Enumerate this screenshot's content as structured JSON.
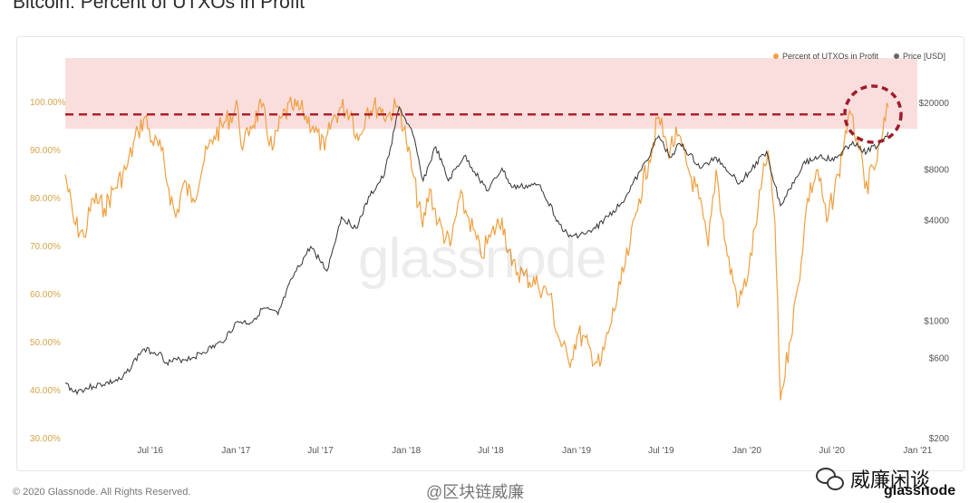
{
  "page": {
    "title": "Bitcoin: Percent of UTXOs in Profit",
    "watermark": "glassnode",
    "footer": "© 2020 Glassnode. All Rights Reserved.",
    "weibo_tag": "@区块链威廉",
    "wechat_name": "威廉闲谈",
    "corner_brand": "glassnode"
  },
  "colors": {
    "utxo": "#f0a040",
    "price": "#333333",
    "band": "#f9d6d6",
    "ref_line": "#b0202a"
  },
  "chart_data": {
    "type": "line",
    "title": "Bitcoin: Percent of UTXOs in Profit",
    "legend_position": "top-right",
    "grid": false,
    "x_ticks": [
      "Jul '16",
      "Jan '17",
      "Jul '17",
      "Jan '18",
      "Jul '18",
      "Jan '19",
      "Jul '19",
      "Jan '20",
      "Jul '20",
      "Jan '21"
    ],
    "x_range": [
      "2016-01-01",
      "2021-01-01"
    ],
    "y_left": {
      "range": [
        30,
        100
      ],
      "ticks": [
        "30.00%",
        "40.00%",
        "50.00%",
        "60.00%",
        "70.00%",
        "80.00%",
        "90.00%",
        "100.00%"
      ]
    },
    "y_right": {
      "scale": "log",
      "range": [
        200,
        20000
      ],
      "ticks": [
        "$200",
        "$600",
        "$1000",
        "$4000",
        "$8000",
        "$20000"
      ]
    },
    "highlight_band": [
      94.5,
      110
    ],
    "reference_line": 97.5,
    "series": [
      {
        "name": "Percent of UTXOs in Profit",
        "axis": "left",
        "points": [
          [
            "2016-01-01",
            85
          ],
          [
            "2016-01-20",
            75
          ],
          [
            "2016-02-10",
            72
          ],
          [
            "2016-03-01",
            80
          ],
          [
            "2016-03-25",
            78
          ],
          [
            "2016-04-15",
            82
          ],
          [
            "2016-05-10",
            86
          ],
          [
            "2016-06-05",
            94
          ],
          [
            "2016-06-20",
            97
          ],
          [
            "2016-07-05",
            92
          ],
          [
            "2016-07-25",
            90
          ],
          [
            "2016-08-10",
            82
          ],
          [
            "2016-08-25",
            76
          ],
          [
            "2016-09-10",
            83
          ],
          [
            "2016-10-01",
            80
          ],
          [
            "2016-10-25",
            88
          ],
          [
            "2016-11-15",
            93
          ],
          [
            "2016-12-10",
            96
          ],
          [
            "2017-01-05",
            99
          ],
          [
            "2017-01-15",
            90
          ],
          [
            "2017-02-01",
            95
          ],
          [
            "2017-02-25",
            99
          ],
          [
            "2017-03-20",
            90
          ],
          [
            "2017-04-10",
            97
          ],
          [
            "2017-05-01",
            99
          ],
          [
            "2017-05-25",
            98
          ],
          [
            "2017-06-15",
            95
          ],
          [
            "2017-07-10",
            90
          ],
          [
            "2017-07-25",
            96
          ],
          [
            "2017-08-15",
            99
          ],
          [
            "2017-09-05",
            98
          ],
          [
            "2017-09-20",
            92
          ],
          [
            "2017-10-10",
            99
          ],
          [
            "2017-11-05",
            99
          ],
          [
            "2017-11-20",
            97
          ],
          [
            "2017-12-10",
            99
          ],
          [
            "2017-12-20",
            98
          ],
          [
            "2018-01-01",
            92
          ],
          [
            "2018-01-15",
            85
          ],
          [
            "2018-02-05",
            74
          ],
          [
            "2018-02-20",
            82
          ],
          [
            "2018-03-10",
            75
          ],
          [
            "2018-04-05",
            70
          ],
          [
            "2018-04-25",
            80
          ],
          [
            "2018-05-15",
            76
          ],
          [
            "2018-06-10",
            68
          ],
          [
            "2018-06-30",
            72
          ],
          [
            "2018-07-25",
            76
          ],
          [
            "2018-08-15",
            66
          ],
          [
            "2018-09-10",
            64
          ],
          [
            "2018-10-10",
            62
          ],
          [
            "2018-11-05",
            60
          ],
          [
            "2018-11-20",
            52
          ],
          [
            "2018-12-15",
            46
          ],
          [
            "2019-01-05",
            52
          ],
          [
            "2019-02-01",
            48
          ],
          [
            "2019-02-20",
            45
          ],
          [
            "2019-03-10",
            52
          ],
          [
            "2019-04-05",
            62
          ],
          [
            "2019-04-25",
            70
          ],
          [
            "2019-05-15",
            80
          ],
          [
            "2019-06-05",
            88
          ],
          [
            "2019-06-26",
            97
          ],
          [
            "2019-07-15",
            90
          ],
          [
            "2019-08-05",
            93
          ],
          [
            "2019-08-25",
            87
          ],
          [
            "2019-09-20",
            80
          ],
          [
            "2019-10-10",
            70
          ],
          [
            "2019-10-27",
            86
          ],
          [
            "2019-11-20",
            68
          ],
          [
            "2019-12-15",
            58
          ],
          [
            "2020-01-05",
            65
          ],
          [
            "2020-01-25",
            78
          ],
          [
            "2020-02-15",
            90
          ],
          [
            "2020-03-01",
            75
          ],
          [
            "2020-03-13",
            38
          ],
          [
            "2020-04-01",
            50
          ],
          [
            "2020-04-20",
            62
          ],
          [
            "2020-05-10",
            80
          ],
          [
            "2020-06-01",
            86
          ],
          [
            "2020-06-20",
            75
          ],
          [
            "2020-07-15",
            85
          ],
          [
            "2020-08-05",
            97
          ],
          [
            "2020-08-25",
            93
          ],
          [
            "2020-09-10",
            82
          ],
          [
            "2020-09-30",
            86
          ],
          [
            "2020-10-15",
            92
          ],
          [
            "2020-10-30",
            99
          ]
        ]
      },
      {
        "name": "Price [USD]",
        "axis": "right",
        "points": [
          [
            "2016-01-01",
            430
          ],
          [
            "2016-01-20",
            380
          ],
          [
            "2016-03-01",
            410
          ],
          [
            "2016-05-01",
            450
          ],
          [
            "2016-06-15",
            680
          ],
          [
            "2016-07-20",
            650
          ],
          [
            "2016-08-05",
            570
          ],
          [
            "2016-10-01",
            610
          ],
          [
            "2016-12-01",
            750
          ],
          [
            "2017-01-05",
            1000
          ],
          [
            "2017-02-01",
            980
          ],
          [
            "2017-03-01",
            1200
          ],
          [
            "2017-04-01",
            1100
          ],
          [
            "2017-05-01",
            1800
          ],
          [
            "2017-06-10",
            2800
          ],
          [
            "2017-07-15",
            2000
          ],
          [
            "2017-08-15",
            4200
          ],
          [
            "2017-09-15",
            3600
          ],
          [
            "2017-10-15",
            5600
          ],
          [
            "2017-11-15",
            7500
          ],
          [
            "2017-12-17",
            19000
          ],
          [
            "2018-01-15",
            13000
          ],
          [
            "2018-02-06",
            6900
          ],
          [
            "2018-03-05",
            11000
          ],
          [
            "2018-04-01",
            6900
          ],
          [
            "2018-05-05",
            9700
          ],
          [
            "2018-06-25",
            6000
          ],
          [
            "2018-07-25",
            8200
          ],
          [
            "2018-08-15",
            6300
          ],
          [
            "2018-10-15",
            6500
          ],
          [
            "2018-11-25",
            3800
          ],
          [
            "2018-12-15",
            3200
          ],
          [
            "2019-02-01",
            3400
          ],
          [
            "2019-04-05",
            5000
          ],
          [
            "2019-05-20",
            8000
          ],
          [
            "2019-06-26",
            12800
          ],
          [
            "2019-07-20",
            9500
          ],
          [
            "2019-08-10",
            11500
          ],
          [
            "2019-09-25",
            8200
          ],
          [
            "2019-10-27",
            9500
          ],
          [
            "2019-12-17",
            6700
          ],
          [
            "2020-02-12",
            10300
          ],
          [
            "2020-03-13",
            4900
          ],
          [
            "2020-04-30",
            8700
          ],
          [
            "2020-06-05",
            9700
          ],
          [
            "2020-07-05",
            9100
          ],
          [
            "2020-08-15",
            11800
          ],
          [
            "2020-09-05",
            10200
          ],
          [
            "2020-10-10",
            11300
          ],
          [
            "2020-10-30",
            13500
          ]
        ]
      }
    ]
  }
}
